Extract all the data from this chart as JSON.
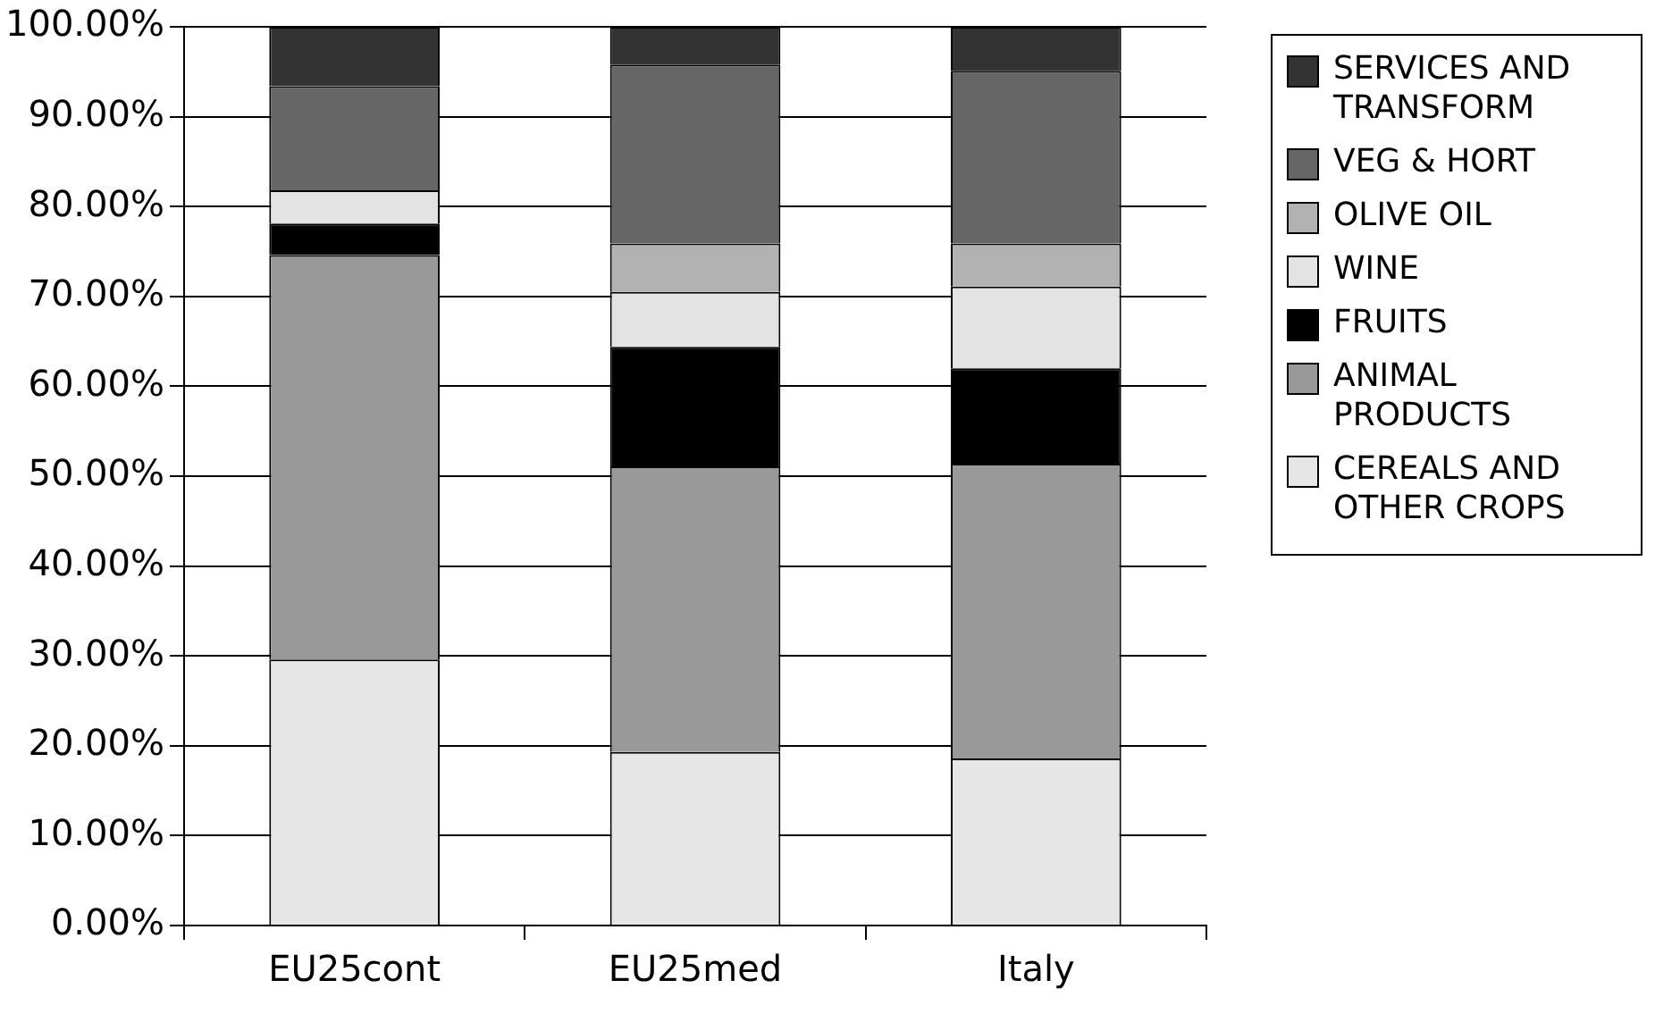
{
  "chart_data": {
    "type": "bar",
    "stacked": true,
    "categories": [
      "EU25cont",
      "EU25med",
      "Italy"
    ],
    "series": [
      {
        "name": "CEREALS AND OTHER CROPS",
        "color": "#e6e6e6",
        "values": [
          29.6,
          19.3,
          18.6
        ]
      },
      {
        "name": "ANIMAL PRODUCTS",
        "color": "#999999",
        "values": [
          45.0,
          31.8,
          32.8
        ]
      },
      {
        "name": "FRUITS",
        "color": "#000000",
        "values": [
          3.5,
          13.3,
          10.6
        ]
      },
      {
        "name": "WINE",
        "color": "#e3e3e3",
        "values": [
          3.7,
          6.1,
          9.1
        ]
      },
      {
        "name": "OLIVE OIL",
        "color": "#b2b2b2",
        "values": [
          0,
          5.4,
          4.8
        ]
      },
      {
        "name": "VEG & HORT",
        "color": "#666666",
        "values": [
          11.6,
          19.9,
          19.2
        ]
      },
      {
        "name": "SERVICES AND TRANSFORM",
        "color": "#333333",
        "values": [
          6.6,
          4.2,
          4.9
        ]
      }
    ],
    "ylim": [
      0,
      100
    ],
    "yticks": [
      {
        "value": 0,
        "label": "0.00%"
      },
      {
        "value": 10,
        "label": "10.00%"
      },
      {
        "value": 20,
        "label": "20.00%"
      },
      {
        "value": 30,
        "label": "30.00%"
      },
      {
        "value": 40,
        "label": "40.00%"
      },
      {
        "value": 50,
        "label": "50.00%"
      },
      {
        "value": 60,
        "label": "60.00%"
      },
      {
        "value": 70,
        "label": "70.00%"
      },
      {
        "value": 80,
        "label": "80.00%"
      },
      {
        "value": 90,
        "label": "90.00%"
      },
      {
        "value": 100,
        "label": "100.00%"
      }
    ],
    "grid": "y",
    "legend": "right"
  }
}
